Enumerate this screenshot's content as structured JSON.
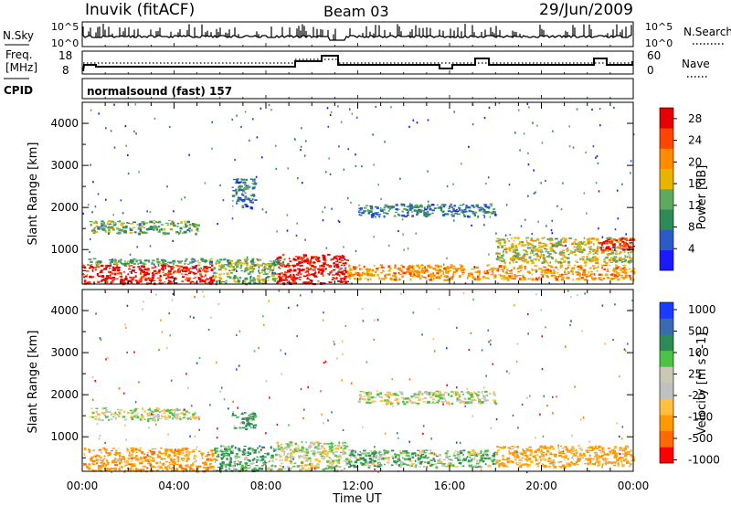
{
  "header": {
    "station": "Inuvik (fitACF)",
    "beam": "Beam 03",
    "date": "29/Jun/2009"
  },
  "strip_labels": {
    "nsky": "N.Sky",
    "nsky_tick_top": "10^5",
    "nsky_tick_bottom": "10^0",
    "nsearch": "N.Search",
    "nsearch_tick_top": "10^5",
    "nsearch_tick_bottom": "10^0",
    "freq_line1": "Freq.",
    "freq_line2": "[MHz]",
    "freq_tick_top": "18",
    "freq_tick_bottom": "8",
    "nave": "Nave",
    "nave_tick_top": "60",
    "nave_tick_bottom": "0",
    "cpid": "CPID",
    "cpid_value": "normalsound (fast) 157"
  },
  "colors": {
    "power": [
      "#1a1aff",
      "#2d5ac8",
      "#2e8b57",
      "#5fa860",
      "#e8b400",
      "#ff8c00",
      "#ff4500",
      "#e60000"
    ],
    "velocity": [
      "#ff0000",
      "#ff6a00",
      "#ff9900",
      "#ffbf3f",
      "#c0c0c0",
      "#c8c8b4",
      "#4cc246",
      "#2e8b57",
      "#3a6ab0",
      "#1a3cff"
    ]
  },
  "chart_data": [
    {
      "type": "heatmap",
      "title": "",
      "quantity": "power",
      "xlabel": "",
      "ylabel": "Slant Range [km]",
      "xlim": [
        "00:00",
        "00:00"
      ],
      "ylim": [
        180,
        4500
      ],
      "x_ticks": [
        "00:00",
        "04:00",
        "08:00",
        "12:00",
        "16:00",
        "20:00",
        "00:00"
      ],
      "y_ticks": [
        1000,
        2000,
        3000,
        4000
      ],
      "colorbar": {
        "label": "Power [dB]",
        "ticks": [
          4,
          8,
          12,
          16,
          20,
          24,
          28
        ],
        "range": [
          0,
          30
        ]
      },
      "regions": [
        {
          "t_start": 0.0,
          "t_end": 5.7,
          "r_start": 200,
          "r_end": 650,
          "value": 28
        },
        {
          "t_start": 5.7,
          "t_end": 8.4,
          "r_start": 200,
          "r_end": 700,
          "value": 14
        },
        {
          "t_start": 8.4,
          "t_end": 11.5,
          "r_start": 200,
          "r_end": 900,
          "value": 29
        },
        {
          "t_start": 11.5,
          "t_end": 24.0,
          "r_start": 300,
          "r_end": 650,
          "value": 20
        },
        {
          "t_start": 0.1,
          "t_end": 9.0,
          "r_start": 650,
          "r_end": 800,
          "value": 12
        },
        {
          "t_start": 0.3,
          "t_end": 5.0,
          "r_start": 1400,
          "r_end": 1700,
          "value": 12
        },
        {
          "t_start": 6.5,
          "t_end": 7.5,
          "r_start": 2000,
          "r_end": 2700,
          "value": 8
        },
        {
          "t_start": 12.0,
          "t_end": 18.0,
          "r_start": 1800,
          "r_end": 2100,
          "value": 8
        },
        {
          "t_start": 18.0,
          "t_end": 24.0,
          "r_start": 700,
          "r_end": 1300,
          "value": 16
        },
        {
          "t_start": 22.5,
          "t_end": 24.0,
          "r_start": 1000,
          "r_end": 1300,
          "value": 28
        }
      ]
    },
    {
      "type": "heatmap",
      "title": "",
      "quantity": "velocity",
      "xlabel": "Time UT",
      "ylabel": "Slant Range [km]",
      "xlim": [
        "00:00",
        "00:00"
      ],
      "ylim": [
        180,
        4500
      ],
      "x_ticks": [
        "00:00",
        "04:00",
        "08:00",
        "12:00",
        "16:00",
        "20:00",
        "00:00"
      ],
      "y_ticks": [
        1000,
        2000,
        3000,
        4000
      ],
      "colorbar": {
        "label": "Velocity [m s^-1]",
        "ticks": [
          "1000",
          "500",
          "100",
          "25",
          "-25",
          "-100",
          "-500",
          "-1000"
        ]
      },
      "regions": [
        {
          "t_start": 0.0,
          "t_end": 5.7,
          "r_start": 200,
          "r_end": 750,
          "value": -300
        },
        {
          "t_start": 5.7,
          "t_end": 8.4,
          "r_start": 200,
          "r_end": 800,
          "value": 150
        },
        {
          "t_start": 8.4,
          "t_end": 11.5,
          "r_start": 200,
          "r_end": 900,
          "value": 0
        },
        {
          "t_start": 11.5,
          "t_end": 18.0,
          "r_start": 300,
          "r_end": 700,
          "value": 80
        },
        {
          "t_start": 18.0,
          "t_end": 24.0,
          "r_start": 300,
          "r_end": 800,
          "value": -200
        },
        {
          "t_start": 0.3,
          "t_end": 5.0,
          "r_start": 1400,
          "r_end": 1700,
          "value": 0
        },
        {
          "t_start": 12.0,
          "t_end": 18.0,
          "r_start": 1800,
          "r_end": 2100,
          "value": 0
        },
        {
          "t_start": 6.5,
          "t_end": 7.5,
          "r_start": 1200,
          "r_end": 1600,
          "value": 200
        }
      ]
    }
  ]
}
